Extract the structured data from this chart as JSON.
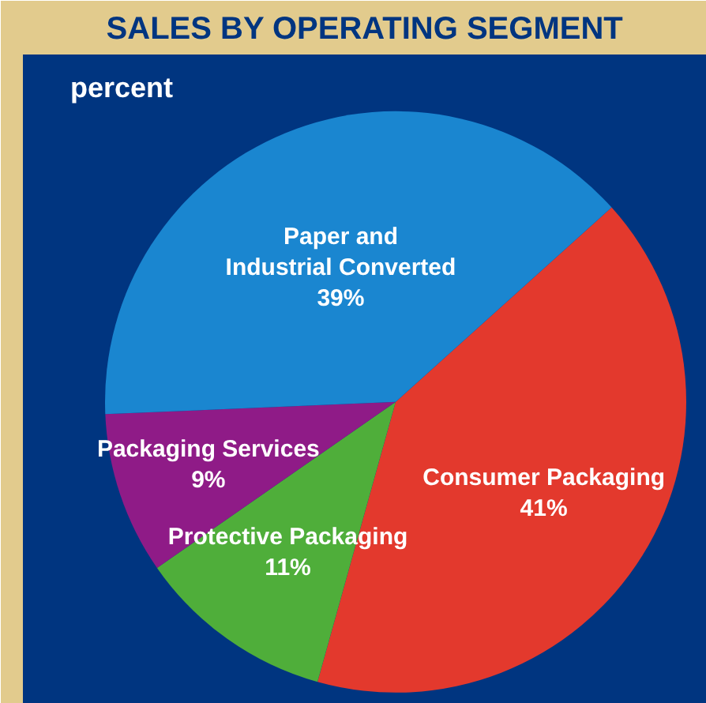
{
  "chart_data": {
    "type": "pie",
    "title": "SALES BY OPERATING SEGMENT",
    "subtitle": "percent",
    "categories": [
      "Consumer Packaging",
      "Protective Packaging",
      "Packaging Services",
      "Paper and\nIndustrial Converted"
    ],
    "values": [
      41,
      11,
      9,
      39
    ],
    "colors": [
      "#e3392d",
      "#4fae3a",
      "#8f1b87",
      "#1a86d0"
    ],
    "value_labels": [
      "41%",
      "11%",
      "9%",
      "39%"
    ]
  }
}
